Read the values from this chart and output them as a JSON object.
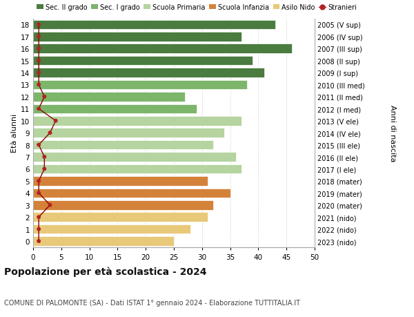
{
  "ages": [
    18,
    17,
    16,
    15,
    14,
    13,
    12,
    11,
    10,
    9,
    8,
    7,
    6,
    5,
    4,
    3,
    2,
    1,
    0
  ],
  "labels_right": [
    "2005 (V sup)",
    "2006 (IV sup)",
    "2007 (III sup)",
    "2008 (II sup)",
    "2009 (I sup)",
    "2010 (III med)",
    "2011 (II med)",
    "2012 (I med)",
    "2013 (V ele)",
    "2014 (IV ele)",
    "2015 (III ele)",
    "2016 (II ele)",
    "2017 (I ele)",
    "2018 (mater)",
    "2019 (mater)",
    "2020 (mater)",
    "2021 (nido)",
    "2022 (nido)",
    "2023 (nido)"
  ],
  "bar_values": [
    43,
    37,
    46,
    39,
    41,
    38,
    27,
    29,
    37,
    34,
    32,
    36,
    37,
    31,
    35,
    32,
    31,
    28,
    25
  ],
  "bar_colors": [
    "#4a7c3f",
    "#4a7c3f",
    "#4a7c3f",
    "#4a7c3f",
    "#4a7c3f",
    "#7db56a",
    "#7db56a",
    "#7db56a",
    "#b5d4a0",
    "#b5d4a0",
    "#b5d4a0",
    "#b5d4a0",
    "#b5d4a0",
    "#d4823a",
    "#d4823a",
    "#d4823a",
    "#e8c97a",
    "#e8c97a",
    "#e8c97a"
  ],
  "stranieri_values": [
    1,
    1,
    1,
    1,
    1,
    1,
    2,
    1,
    4,
    3,
    1,
    2,
    2,
    1,
    1,
    3,
    1,
    1,
    1
  ],
  "legend_labels": [
    "Sec. II grado",
    "Sec. I grado",
    "Scuola Primaria",
    "Scuola Infanzia",
    "Asilo Nido",
    "Stranieri"
  ],
  "legend_colors": [
    "#4a7c3f",
    "#7db56a",
    "#b5d4a0",
    "#d4823a",
    "#e8c97a",
    "#b22222"
  ],
  "xlim": [
    0,
    50
  ],
  "xticks": [
    0,
    5,
    10,
    15,
    20,
    25,
    30,
    35,
    40,
    45,
    50
  ],
  "ylabel_left": "Età alunni",
  "ylabel_right": "Anni di nascita",
  "title": "Popolazione per età scolastica - 2024",
  "subtitle": "COMUNE DI PALOMONTE (SA) - Dati ISTAT 1° gennaio 2024 - Elaborazione TUTTITALIA.IT",
  "background_color": "#ffffff",
  "bar_height": 0.78
}
